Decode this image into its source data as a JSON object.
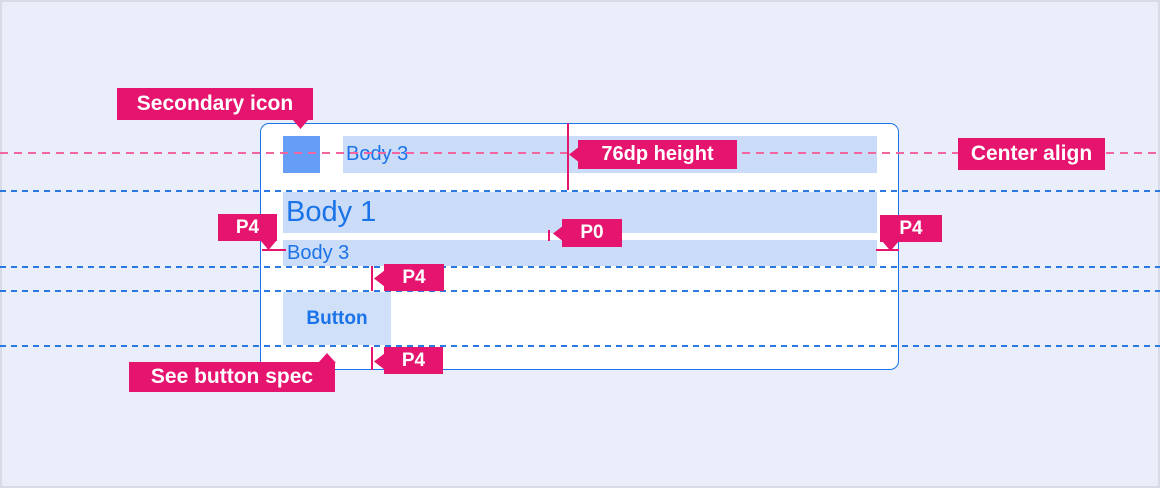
{
  "palette": {
    "canvas_background": "#E9EEFA",
    "canvas_border": "#D8DBE6",
    "badge_pink": "#E5146E",
    "keyline_pink_dashed": "#F2669F",
    "keyline_blue_dashed": "#2A79E0",
    "card_border_blue": "#1A73E8",
    "card_background": "#FFFFFF",
    "text_blue": "#1A73E8",
    "secondary_icon_blue": "#669DF6",
    "text_highlight_blue": "#CBDCF8",
    "button_fill_blue": "#CFE0F8"
  },
  "annotations": {
    "secondary_icon": {
      "label": "Secondary icon"
    },
    "height": {
      "label": "76dp height"
    },
    "center_align": {
      "label": "Center align"
    },
    "p4_left": {
      "label": "P4"
    },
    "p4_right": {
      "label": "P4"
    },
    "p0": {
      "label": "P0"
    },
    "p4_above_button": {
      "label": "P4"
    },
    "p4_below_button": {
      "label": "P4"
    },
    "see_button_spec": {
      "label": "See button spec"
    }
  },
  "content": {
    "icon_row_label": "Body 3",
    "body1_label": "Body 1",
    "body3_label": "Body 3",
    "button_label": "Button"
  }
}
